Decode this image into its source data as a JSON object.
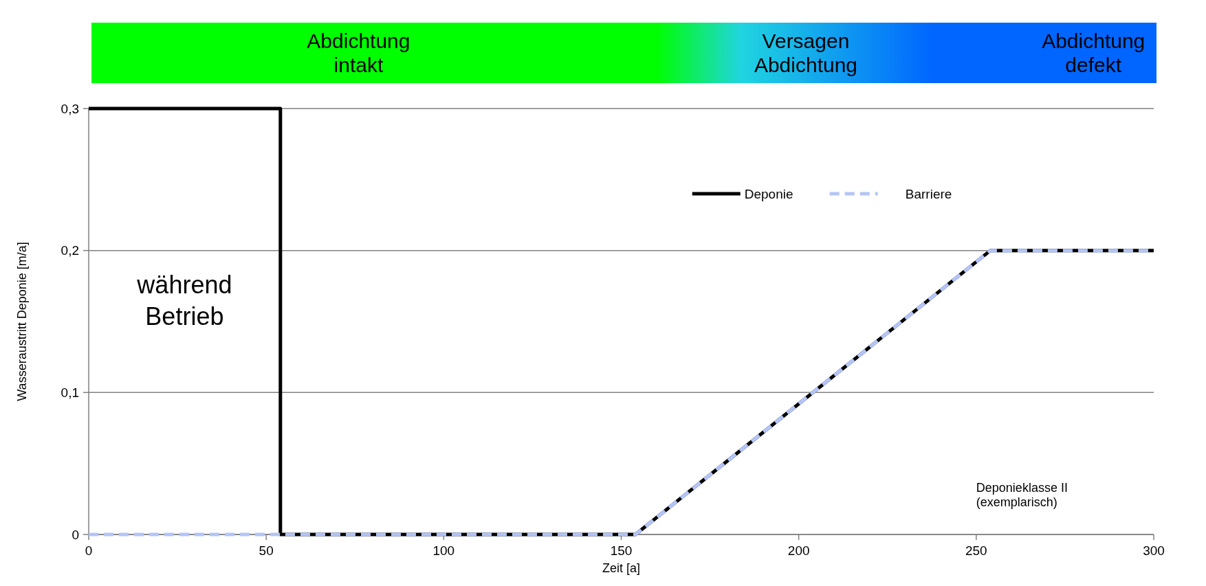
{
  "chart_data": {
    "type": "line",
    "xlabel": "Zeit [a]",
    "ylabel": "Wasseraustritt Deponie  [m/a]",
    "series": [
      {
        "name": "Deponie",
        "color": "#000000",
        "line_style": "solid",
        "x": [
          0,
          54,
          54,
          154,
          254,
          300
        ],
        "values": [
          0.3,
          0.3,
          0,
          0,
          0.2,
          0.2
        ]
      },
      {
        "name": "Barriere",
        "color": "#b4c4f8",
        "line_style": "dashed",
        "x": [
          0,
          154,
          254,
          300
        ],
        "values": [
          0,
          0,
          0.2,
          0.2
        ]
      }
    ],
    "xlim": [
      0,
      300
    ],
    "xticks": [
      0,
      50,
      100,
      150,
      200,
      250,
      300
    ],
    "ylim": [
      0,
      0.3
    ],
    "yticks": [
      0,
      {
        "value": 0.1,
        "label": "0,1"
      },
      {
        "value": 0.2,
        "label": "0,2"
      },
      {
        "value": 0.3,
        "label": "0,3"
      }
    ],
    "grid": "y",
    "legend": "top",
    "annotations": [
      "Abdichtung\nintakt",
      "Versagen\nAbdichtung",
      "Abdichtung\ndefekt",
      "während\nBetrieb",
      "Deponieklasse II\n(exemplarisch)"
    ]
  }
}
